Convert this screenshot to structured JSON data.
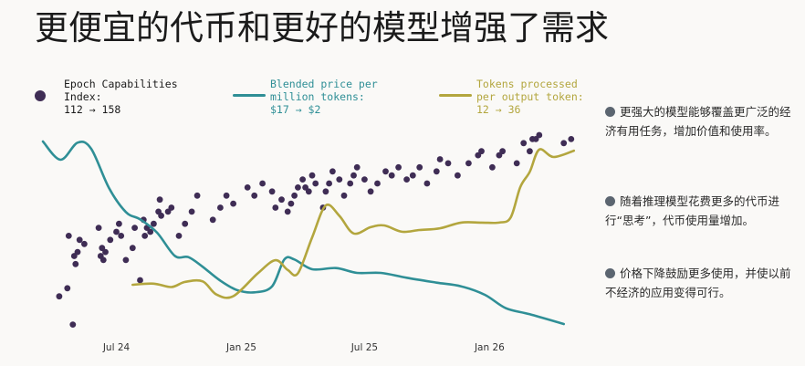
{
  "title": "更便宜的代币和更好的模型增强了需求",
  "legend": [
    {
      "label": "Epoch Capabilities\nIndex:\n112 → 158",
      "color": "#3f2d55",
      "kind": "dot"
    },
    {
      "label": "Blended price per\nmillion tokens:\n$17 → $2",
      "color": "#2f8f96",
      "kind": "line"
    },
    {
      "label": "Tokens processed\nper output token:\n12 → 36",
      "color": "#b3a63e",
      "kind": "line"
    }
  ],
  "notes": [
    "更强大的模型能够覆盖更广泛的经济有用任务，增加价值和使用率。",
    "随着推理模型花费更多的代币进行“思考”，代币使用量增加。",
    "价格下降鼓励更多使用，并使以前不经济的应用变得可行。"
  ],
  "chart_data": {
    "type": "line",
    "title": "更便宜的代币和更好的模型增强了需求",
    "x_ticks": [
      "Jul 24",
      "Jan 25",
      "Jul 25",
      "Jan 26"
    ],
    "x_range": [
      "2024-03-15",
      "2026-05-20"
    ],
    "grid": false,
    "legend_position": "top",
    "series": [
      {
        "name": "Blended price per million tokens",
        "color": "#2f8f96",
        "start_value": 17,
        "end_value": 2,
        "points": [
          [
            "2024-03-15",
            17.0
          ],
          [
            "2024-04-10",
            15.5
          ],
          [
            "2024-05-05",
            16.9
          ],
          [
            "2024-05-25",
            16.4
          ],
          [
            "2024-06-20",
            13.2
          ],
          [
            "2024-07-15",
            11.2
          ],
          [
            "2024-08-05",
            10.6
          ],
          [
            "2024-08-30",
            9.5
          ],
          [
            "2024-09-25",
            7.6
          ],
          [
            "2024-10-15",
            7.5
          ],
          [
            "2024-11-05",
            6.7
          ],
          [
            "2024-11-30",
            5.6
          ],
          [
            "2024-12-25",
            4.8
          ],
          [
            "2025-01-20",
            4.6
          ],
          [
            "2025-02-15",
            5.1
          ],
          [
            "2025-03-05",
            7.3
          ],
          [
            "2025-03-20",
            7.3
          ],
          [
            "2025-04-15",
            6.5
          ],
          [
            "2025-05-20",
            6.6
          ],
          [
            "2025-06-20",
            6.2
          ],
          [
            "2025-07-25",
            6.2
          ],
          [
            "2025-09-01",
            5.8
          ],
          [
            "2025-10-15",
            5.4
          ],
          [
            "2025-11-20",
            5.1
          ],
          [
            "2025-12-25",
            4.4
          ],
          [
            "2026-01-25",
            3.3
          ],
          [
            "2026-03-01",
            2.8
          ],
          [
            "2026-04-20",
            2.0
          ]
        ]
      },
      {
        "name": "Tokens processed per output token",
        "color": "#b3a63e",
        "start_value": 12,
        "end_value": 36,
        "points": [
          [
            "2024-07-25",
            12.0
          ],
          [
            "2024-08-25",
            12.2
          ],
          [
            "2024-09-20",
            11.6
          ],
          [
            "2024-10-10",
            12.5
          ],
          [
            "2024-11-05",
            12.6
          ],
          [
            "2024-11-25",
            10.3
          ],
          [
            "2024-12-20",
            10.0
          ],
          [
            "2025-01-25",
            14.0
          ],
          [
            "2025-02-20",
            16.3
          ],
          [
            "2025-03-10",
            14.6
          ],
          [
            "2025-03-25",
            14.0
          ],
          [
            "2025-04-15",
            20.3
          ],
          [
            "2025-05-05",
            25.9
          ],
          [
            "2025-05-25",
            24.1
          ],
          [
            "2025-06-15",
            21.0
          ],
          [
            "2025-07-10",
            22.1
          ],
          [
            "2025-07-30",
            22.4
          ],
          [
            "2025-08-25",
            21.3
          ],
          [
            "2025-09-20",
            21.6
          ],
          [
            "2025-10-20",
            21.9
          ],
          [
            "2025-11-20",
            22.9
          ],
          [
            "2025-12-20",
            22.9
          ],
          [
            "2026-01-15",
            22.9
          ],
          [
            "2026-02-01",
            23.8
          ],
          [
            "2026-02-15",
            29.1
          ],
          [
            "2026-03-01",
            31.8
          ],
          [
            "2026-03-15",
            35.7
          ],
          [
            "2026-04-05",
            34.4
          ],
          [
            "2026-05-05",
            35.5
          ]
        ]
      }
    ],
    "scatter": {
      "name": "Epoch Capabilities Index",
      "color": "#3f2d55",
      "start_value": 112,
      "end_value": 158,
      "points": [
        [
          "2024-04-08",
          118
        ],
        [
          "2024-04-20",
          120
        ],
        [
          "2024-04-22",
          133
        ],
        [
          "2024-04-28",
          111
        ],
        [
          "2024-04-30",
          128
        ],
        [
          "2024-05-02",
          126
        ],
        [
          "2024-05-05",
          129
        ],
        [
          "2024-05-08",
          132
        ],
        [
          "2024-05-15",
          131
        ],
        [
          "2024-06-05",
          135
        ],
        [
          "2024-06-08",
          128
        ],
        [
          "2024-06-10",
          130
        ],
        [
          "2024-06-12",
          127
        ],
        [
          "2024-06-15",
          129
        ],
        [
          "2024-06-22",
          132
        ],
        [
          "2024-07-01",
          134
        ],
        [
          "2024-07-05",
          136
        ],
        [
          "2024-07-08",
          133
        ],
        [
          "2024-07-15",
          127
        ],
        [
          "2024-07-25",
          130
        ],
        [
          "2024-07-28",
          135
        ],
        [
          "2024-08-05",
          122
        ],
        [
          "2024-08-10",
          137
        ],
        [
          "2024-08-12",
          133
        ],
        [
          "2024-08-15",
          135
        ],
        [
          "2024-08-20",
          134
        ],
        [
          "2024-08-25",
          136
        ],
        [
          "2024-09-01",
          139
        ],
        [
          "2024-09-03",
          142
        ],
        [
          "2024-09-05",
          138
        ],
        [
          "2024-09-15",
          139
        ],
        [
          "2024-09-20",
          140
        ],
        [
          "2024-10-01",
          133
        ],
        [
          "2024-10-10",
          136
        ],
        [
          "2024-10-20",
          139
        ],
        [
          "2024-10-28",
          143
        ],
        [
          "2024-11-20",
          137
        ],
        [
          "2024-12-01",
          140
        ],
        [
          "2024-12-10",
          143
        ],
        [
          "2024-12-20",
          141
        ],
        [
          "2025-01-10",
          145
        ],
        [
          "2025-01-20",
          143
        ],
        [
          "2025-02-01",
          146
        ],
        [
          "2025-02-15",
          144
        ],
        [
          "2025-02-20",
          140
        ],
        [
          "2025-03-01",
          142
        ],
        [
          "2025-03-10",
          139
        ],
        [
          "2025-03-15",
          141
        ],
        [
          "2025-03-20",
          143
        ],
        [
          "2025-03-25",
          145
        ],
        [
          "2025-04-01",
          147
        ],
        [
          "2025-04-05",
          145
        ],
        [
          "2025-04-10",
          144
        ],
        [
          "2025-04-15",
          148
        ],
        [
          "2025-04-20",
          146
        ],
        [
          "2025-05-01",
          140
        ],
        [
          "2025-05-05",
          144
        ],
        [
          "2025-05-10",
          146
        ],
        [
          "2025-05-15",
          149
        ],
        [
          "2025-05-25",
          147
        ],
        [
          "2025-06-01",
          143
        ],
        [
          "2025-06-10",
          146
        ],
        [
          "2025-06-15",
          148
        ],
        [
          "2025-06-20",
          150
        ],
        [
          "2025-07-01",
          147
        ],
        [
          "2025-07-10",
          144
        ],
        [
          "2025-07-20",
          146
        ],
        [
          "2025-08-01",
          149
        ],
        [
          "2025-08-10",
          148
        ],
        [
          "2025-08-20",
          150
        ],
        [
          "2025-09-01",
          147
        ],
        [
          "2025-09-10",
          148
        ],
        [
          "2025-09-20",
          150
        ],
        [
          "2025-10-01",
          146
        ],
        [
          "2025-10-15",
          149
        ],
        [
          "2025-10-20",
          152
        ],
        [
          "2025-11-01",
          151
        ],
        [
          "2025-11-15",
          148
        ],
        [
          "2025-12-01",
          151
        ],
        [
          "2025-12-15",
          153
        ],
        [
          "2025-12-20",
          154
        ],
        [
          "2026-01-05",
          150
        ],
        [
          "2026-01-15",
          153
        ],
        [
          "2026-01-20",
          154
        ],
        [
          "2026-02-10",
          151
        ],
        [
          "2026-02-20",
          156
        ],
        [
          "2026-03-01",
          154
        ],
        [
          "2026-03-05",
          157
        ],
        [
          "2026-03-10",
          157
        ],
        [
          "2026-03-15",
          158
        ],
        [
          "2026-04-20",
          156
        ],
        [
          "2026-05-01",
          157
        ]
      ]
    }
  }
}
